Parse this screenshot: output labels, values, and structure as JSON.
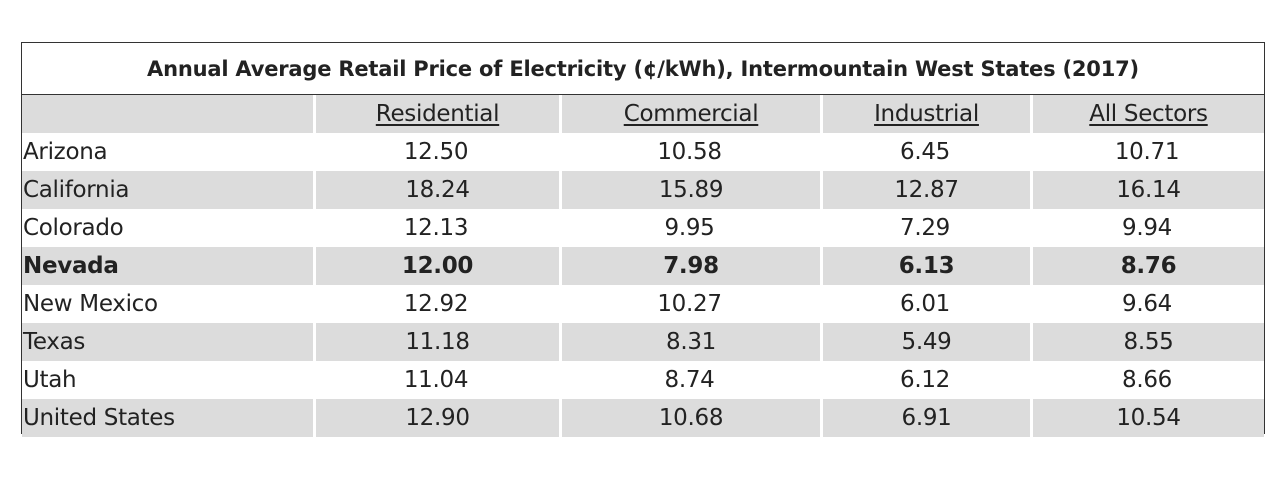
{
  "table": {
    "title": "Annual Average Retail Price of Electricity (¢/kWh), Intermountain West States (2017)",
    "columns": [
      "Residential",
      "Commercial",
      "Industrial",
      "All Sectors"
    ],
    "rows": [
      {
        "name": "Arizona",
        "values": [
          "12.50",
          "10.58",
          "6.45",
          "10.71"
        ]
      },
      {
        "name": "California",
        "values": [
          "18.24",
          "15.89",
          "12.87",
          "16.14"
        ]
      },
      {
        "name": "Colorado",
        "values": [
          "12.13",
          "9.95",
          "7.29",
          "9.94"
        ]
      },
      {
        "name": "Nevada",
        "values": [
          "12.00",
          "7.98",
          "6.13",
          "8.76"
        ]
      },
      {
        "name": "New Mexico",
        "values": [
          "12.92",
          "10.27",
          "6.01",
          "9.64"
        ]
      },
      {
        "name": "Texas",
        "values": [
          "11.18",
          "8.31",
          "5.49",
          "8.55"
        ]
      },
      {
        "name": "Utah",
        "values": [
          "11.04",
          "8.74",
          "6.12",
          "8.66"
        ]
      },
      {
        "name": "United States",
        "values": [
          "12.90",
          "10.68",
          "6.91",
          "10.54"
        ]
      }
    ]
  }
}
